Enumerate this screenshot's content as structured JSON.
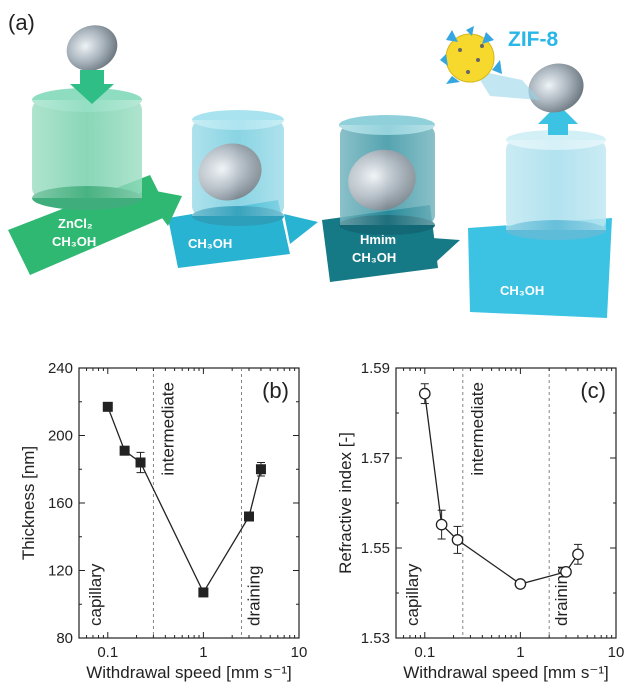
{
  "illustration": {
    "panel_label": "(a)",
    "zif_label": "ZIF-8",
    "steps": [
      {
        "line1": "ZnCl₂",
        "line2": "CH₃OH"
      },
      {
        "line1": "CH₃OH",
        "line2": ""
      },
      {
        "line1": "Hmim",
        "line2": "CH₃OH"
      },
      {
        "line1": "CH₃OH",
        "line2": ""
      }
    ],
    "colors": {
      "zif": "#29b6e8",
      "step1": "#2fb872",
      "step2": "#29b3d3",
      "step3": "#167a86",
      "step4": "#3cc3e3"
    }
  },
  "chart_data": [
    {
      "panel": "(b)",
      "type": "scatter",
      "xlabel": "Withdrawal speed [mm s⁻¹]",
      "ylabel": "Thickness [nm]",
      "xscale": "log",
      "xlim": [
        0.05,
        10
      ],
      "ylim": [
        80,
        240
      ],
      "xticks": [
        0.1,
        1,
        10
      ],
      "xticklabels": [
        "0.1",
        "1",
        "10"
      ],
      "yticks": [
        80,
        120,
        160,
        200,
        240
      ],
      "yticklabels": [
        "80",
        "120",
        "160",
        "200",
        "240"
      ],
      "marker": "filled-square",
      "x": [
        0.1,
        0.15,
        0.22,
        1.0,
        3.0,
        4.0
      ],
      "y": [
        217,
        191,
        184,
        107,
        152,
        180
      ],
      "yerr": [
        0,
        0,
        6,
        0,
        0,
        4
      ],
      "boundaries": [
        0.3,
        2.5
      ],
      "regions": [
        "capillary",
        "intermediate",
        "draining"
      ]
    },
    {
      "panel": "(c)",
      "type": "scatter",
      "xlabel": "Withdrawal speed [mm s⁻¹]",
      "ylabel": "Refractive index [-]",
      "xscale": "log",
      "xlim": [
        0.05,
        10
      ],
      "ylim": [
        1.53,
        1.59
      ],
      "xticks": [
        0.1,
        1,
        10
      ],
      "xticklabels": [
        "0.1",
        "1",
        "10"
      ],
      "yticks": [
        1.53,
        1.55,
        1.57,
        1.59
      ],
      "yticklabels": [
        "1.53",
        "1.55",
        "1.57",
        "1.59"
      ],
      "marker": "open-circle",
      "x": [
        0.1,
        0.15,
        0.22,
        1.0,
        3.0,
        4.0
      ],
      "y": [
        1.5843,
        1.5552,
        1.5518,
        1.542,
        1.5447,
        1.5486
      ],
      "yerr": [
        0.0022,
        0.0032,
        0.003,
        0.0008,
        0.0008,
        0.0022
      ],
      "boundaries": [
        0.25,
        2.0
      ],
      "regions": [
        "capillary",
        "intermediate",
        "draining"
      ]
    }
  ]
}
